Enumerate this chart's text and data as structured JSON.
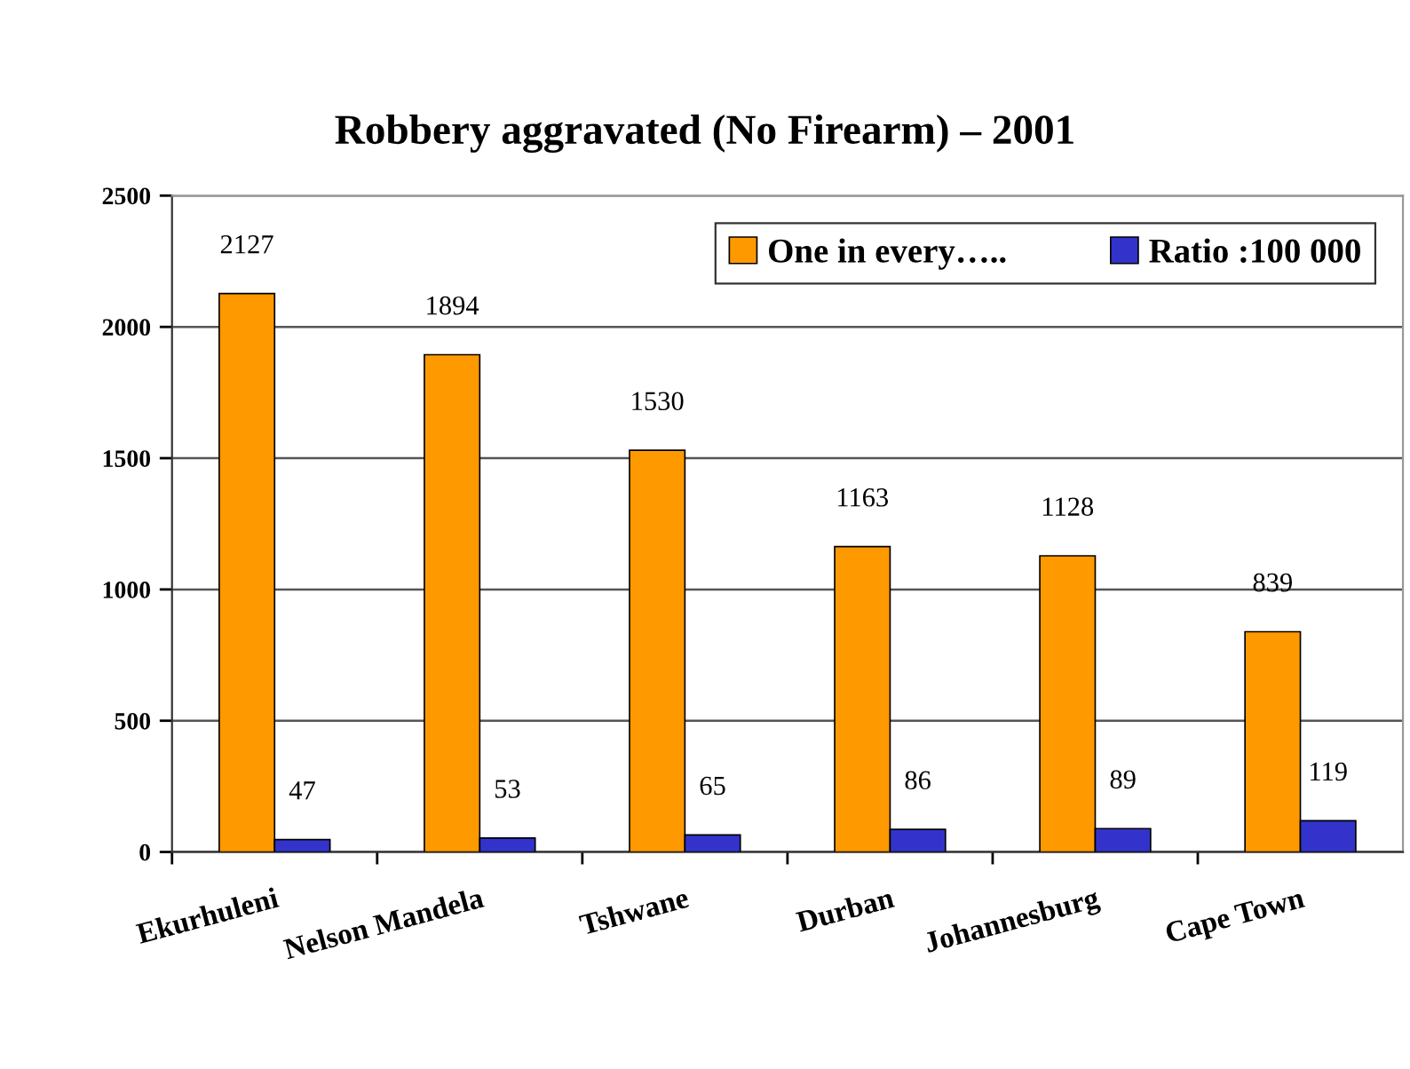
{
  "chart_data": {
    "type": "bar",
    "title": "Robbery aggravated (No Firearm) – 2001",
    "categories": [
      "Ekurhuleni",
      "Nelson Mandela",
      "Tshwane",
      "Durban",
      "Johannesburg",
      "Cape Town"
    ],
    "series": [
      {
        "name": "One in every…..",
        "color": "#ff9900",
        "values": [
          2127,
          1894,
          1530,
          1163,
          1128,
          839
        ]
      },
      {
        "name": "Ratio :100 000",
        "color": "#3333cc",
        "values": [
          47,
          53,
          65,
          86,
          89,
          119
        ]
      }
    ],
    "ylim": [
      0,
      2500
    ],
    "yticks": [
      0,
      500,
      1000,
      1500,
      2000,
      2500
    ],
    "grid": "y",
    "legend": "top right",
    "data_labels": true
  }
}
